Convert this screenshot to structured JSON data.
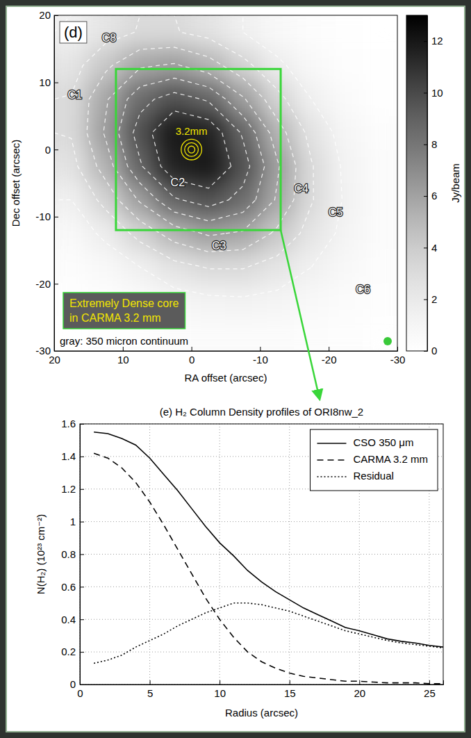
{
  "chart_data": [
    {
      "type": "heatmap",
      "title": "(d)",
      "xlabel": "RA offset (arcsec)",
      "ylabel": "Dec offset (arcsec)",
      "xlim": [
        20,
        -30
      ],
      "ylim": [
        -30,
        20
      ],
      "xticks": [
        20,
        10,
        0,
        -10,
        -20,
        -30
      ],
      "yticks": [
        -30,
        -20,
        -10,
        0,
        10,
        20
      ],
      "x": [
        17.5,
        12.5,
        7.5,
        2.5,
        -2.5,
        -7.5,
        -12.5,
        -17.5,
        -22.5,
        -27.5
      ],
      "y": [
        17.5,
        12.5,
        7.5,
        2.5,
        -2.5,
        -7.5,
        -12.5,
        -17.5,
        -22.5,
        -27.5
      ],
      "values": [
        [
          1.5,
          2.4,
          3.1,
          3.1,
          2.5,
          1.5,
          0.7,
          0.3,
          0.1,
          0
        ],
        [
          2.4,
          4.2,
          5.8,
          6.2,
          5.2,
          3.5,
          1.8,
          0.7,
          0.2,
          0.1
        ],
        [
          3.1,
          5.8,
          8.5,
          9.7,
          8.8,
          6.2,
          3.5,
          1.5,
          0.5,
          0.1
        ],
        [
          3.1,
          6.2,
          9.7,
          12.0,
          11.6,
          8.8,
          5.2,
          2.5,
          0.9,
          0.3
        ],
        [
          2.5,
          5.2,
          8.8,
          11.6,
          12.0,
          9.7,
          6.2,
          3.1,
          1.2,
          0.4
        ],
        [
          1.5,
          3.5,
          6.2,
          8.8,
          9.7,
          8.5,
          5.8,
          3.1,
          1.3,
          0.4
        ],
        [
          0.7,
          1.8,
          3.5,
          5.2,
          6.2,
          5.8,
          4.2,
          2.4,
          1.1,
          0.4
        ],
        [
          0.3,
          0.7,
          1.5,
          2.5,
          3.1,
          3.1,
          2.4,
          1.5,
          0.7,
          0.3
        ],
        [
          0.1,
          0.2,
          0.5,
          0.9,
          1.2,
          1.3,
          1.1,
          0.7,
          0.4,
          0.2
        ],
        [
          0,
          0.1,
          0.1,
          0.3,
          0.4,
          0.4,
          0.4,
          0.3,
          0.2,
          0.1
        ]
      ],
      "colorbar_lim": [
        0,
        13
      ],
      "colorbar_ticks": [
        0,
        2,
        4,
        6,
        8,
        10,
        12
      ],
      "colorbar_label": "Jy/beam",
      "contour_levels": [
        1.5,
        3,
        4.5,
        6,
        7.5,
        9,
        10.5
      ],
      "core": {
        "label": "3.2mm",
        "x": 0,
        "y": 0,
        "contour_radii": [
          0.5,
          1,
          1.5
        ]
      },
      "annotations": [
        {
          "text": "C8",
          "x": 12,
          "y": 16.5
        },
        {
          "text": "C1",
          "x": 17,
          "y": 8
        },
        {
          "text": "C2",
          "x": 2,
          "y": -5
        },
        {
          "text": "C4",
          "x": -16,
          "y": -6
        },
        {
          "text": "C3",
          "x": -4,
          "y": -14.5
        },
        {
          "text": "C5",
          "x": -21,
          "y": -9.5
        },
        {
          "text": "C6",
          "x": -25,
          "y": -21
        }
      ],
      "box": {
        "x": [
          11,
          -13
        ],
        "y": [
          -12,
          12
        ]
      },
      "callout": [
        "Extremely Dense core",
        "in CARMA 3.2 mm"
      ],
      "caption": "gray: 350 micron continuum"
    },
    {
      "type": "line",
      "title": "(e) H₂ Column Density profiles of ORI8nw_2",
      "xlabel": "Radius (arcsec)",
      "ylabel": "N(H₂) (10²³ cm⁻²)",
      "x": [
        1,
        2,
        3,
        4,
        5,
        6,
        7,
        8,
        9,
        10,
        11,
        12,
        13,
        14,
        15,
        16,
        17,
        18,
        19,
        20,
        21,
        22,
        23,
        24,
        25,
        26
      ],
      "xlim": [
        0,
        26
      ],
      "xticks": [
        0,
        5,
        10,
        15,
        20,
        25
      ],
      "ylim": [
        0,
        1.6
      ],
      "yticks": [
        0,
        0.2,
        0.4,
        0.6,
        0.8,
        1,
        1.2,
        1.4,
        1.6
      ],
      "grid": true,
      "legend": "upper right",
      "series": [
        {
          "name": "CSO 350 μm",
          "color": "#000000",
          "line_style": "solid",
          "values": [
            1.55,
            1.54,
            1.51,
            1.47,
            1.39,
            1.29,
            1.19,
            1.08,
            0.97,
            0.87,
            0.79,
            0.7,
            0.63,
            0.57,
            0.52,
            0.47,
            0.43,
            0.39,
            0.35,
            0.33,
            0.305,
            0.28,
            0.265,
            0.255,
            0.24,
            0.23
          ]
        },
        {
          "name": "CARMA 3.2 mm",
          "color": "#000000",
          "line_style": "dashed",
          "values": [
            1.42,
            1.39,
            1.33,
            1.24,
            1.12,
            0.98,
            0.83,
            0.68,
            0.53,
            0.4,
            0.29,
            0.2,
            0.14,
            0.1,
            0.07,
            0.05,
            0.04,
            0.03,
            0.02,
            0.02,
            0.015,
            0.01,
            0.01,
            0.01,
            0.005,
            0.005
          ]
        },
        {
          "name": "Residual",
          "color": "#000000",
          "line_style": "dotted",
          "values": [
            0.13,
            0.15,
            0.18,
            0.23,
            0.27,
            0.31,
            0.36,
            0.4,
            0.44,
            0.47,
            0.5,
            0.5,
            0.49,
            0.47,
            0.45,
            0.42,
            0.39,
            0.36,
            0.33,
            0.31,
            0.29,
            0.27,
            0.255,
            0.245,
            0.235,
            0.225
          ]
        }
      ]
    }
  ]
}
